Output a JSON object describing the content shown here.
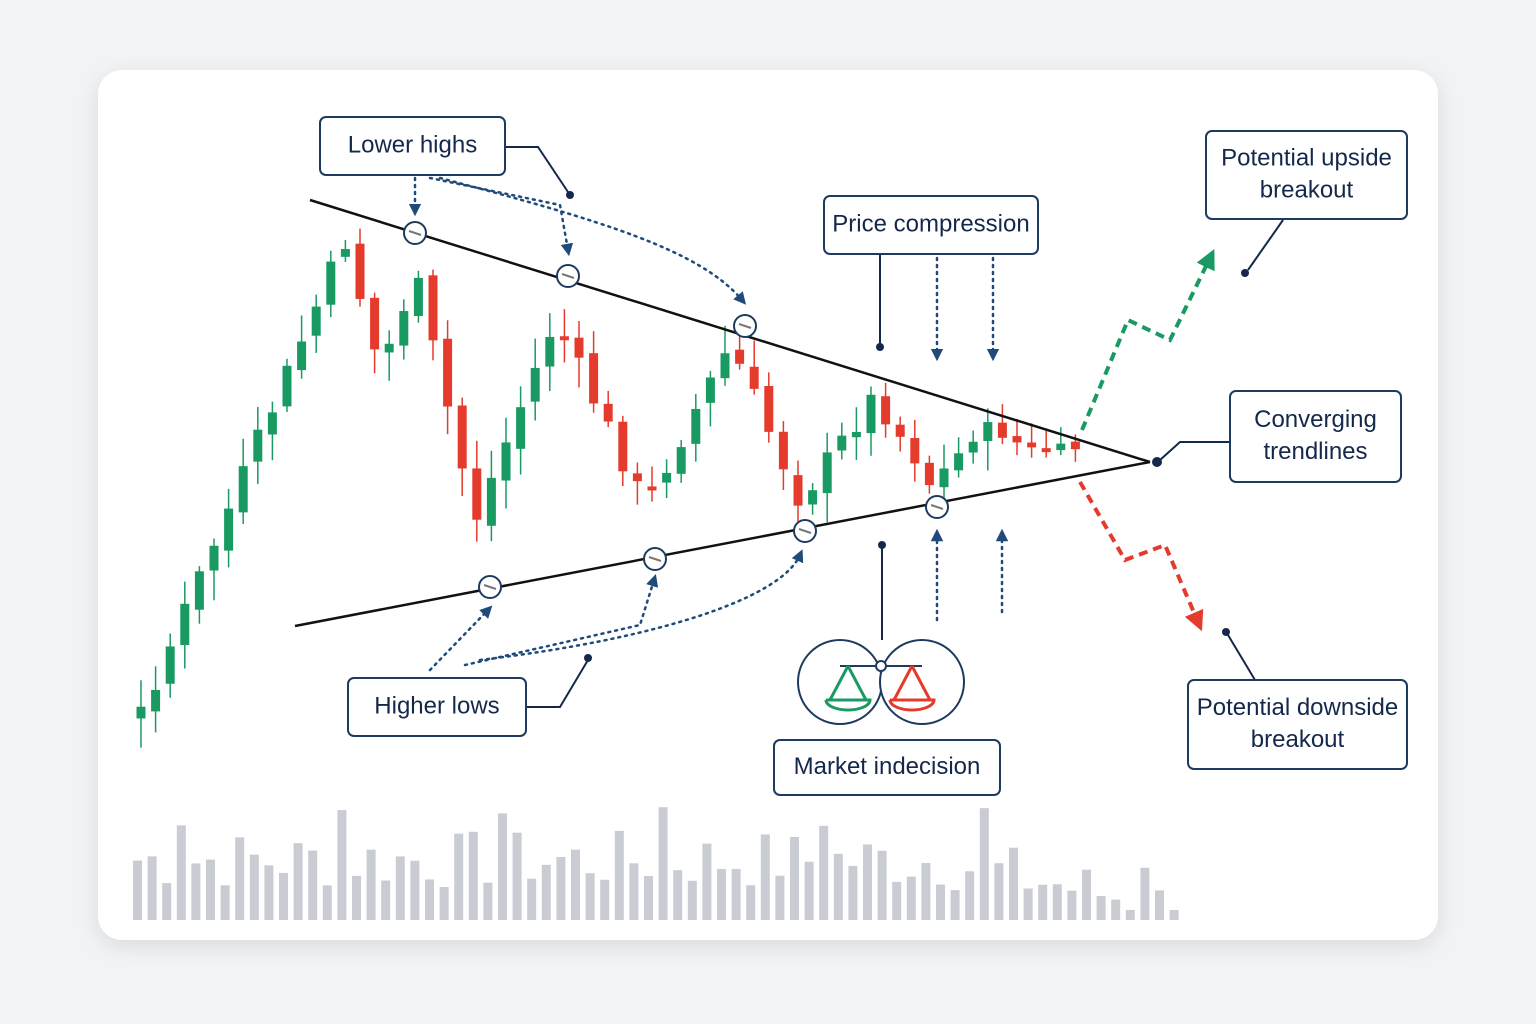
{
  "callouts": {
    "lower_highs": {
      "lines": [
        "Lower highs"
      ]
    },
    "higher_lows": {
      "lines": [
        "Higher lows"
      ]
    },
    "price_compression": {
      "lines": [
        "Price compression"
      ]
    },
    "market_indecision": {
      "lines": [
        "Market indecision"
      ]
    },
    "upside_breakout": {
      "lines": [
        "Potential upside",
        "breakout"
      ]
    },
    "converging_trendlines": {
      "lines": [
        "Converging",
        "trendlines"
      ]
    },
    "downside_breakout": {
      "lines": [
        "Potential downside",
        "breakout"
      ]
    }
  }
}
